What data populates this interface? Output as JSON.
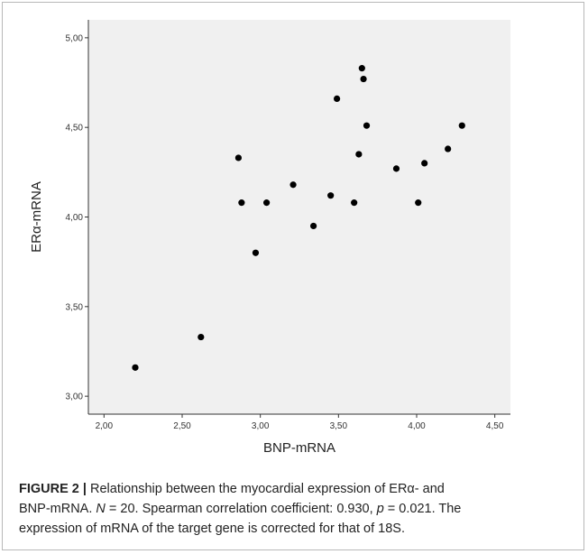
{
  "chart_data": {
    "type": "scatter",
    "xlabel": "BNP-mRNA",
    "ylabel": "ERα-mRNA",
    "xlim": [
      1.9,
      4.6
    ],
    "ylim": [
      2.9,
      5.1
    ],
    "xticks": [
      2.0,
      2.5,
      3.0,
      3.5,
      4.0,
      4.5
    ],
    "yticks": [
      3.0,
      3.5,
      4.0,
      4.5,
      5.0
    ],
    "xtick_labels": [
      "2,00",
      "2,50",
      "3,00",
      "3,50",
      "4,00",
      "4,50"
    ],
    "ytick_labels": [
      "3,00",
      "3,50",
      "4,00",
      "4,50",
      "5,00"
    ],
    "grid": false,
    "points": [
      {
        "x": 2.2,
        "y": 3.16
      },
      {
        "x": 2.62,
        "y": 3.33
      },
      {
        "x": 2.86,
        "y": 4.33
      },
      {
        "x": 2.88,
        "y": 4.08
      },
      {
        "x": 2.97,
        "y": 3.8
      },
      {
        "x": 3.04,
        "y": 4.08
      },
      {
        "x": 3.21,
        "y": 4.18
      },
      {
        "x": 3.34,
        "y": 3.95
      },
      {
        "x": 3.45,
        "y": 4.12
      },
      {
        "x": 3.49,
        "y": 4.66
      },
      {
        "x": 3.6,
        "y": 4.08
      },
      {
        "x": 3.63,
        "y": 4.35
      },
      {
        "x": 3.65,
        "y": 4.83
      },
      {
        "x": 3.66,
        "y": 4.77
      },
      {
        "x": 3.68,
        "y": 4.51
      },
      {
        "x": 3.87,
        "y": 4.27
      },
      {
        "x": 4.01,
        "y": 4.08
      },
      {
        "x": 4.05,
        "y": 4.3
      },
      {
        "x": 4.2,
        "y": 4.38
      },
      {
        "x": 4.29,
        "y": 4.51
      }
    ],
    "colors": {
      "plot_background": "#f0f0f0",
      "marker": "#000000",
      "axis": "#333333"
    }
  },
  "caption": {
    "label": "FIGURE 2 |",
    "line1_text": " Relationship between the myocardial expression of ERα- and",
    "line2_part1": "BNP-mRNA. ",
    "line2_n_symbol": "N",
    "line2_part2": " = 20. Spearman correlation coefficient: 0.930, ",
    "line2_p_symbol": "p",
    "line2_part3": " = 0.021. The",
    "line3_text": "expression of mRNA of the target gene is corrected for that of 18S."
  }
}
